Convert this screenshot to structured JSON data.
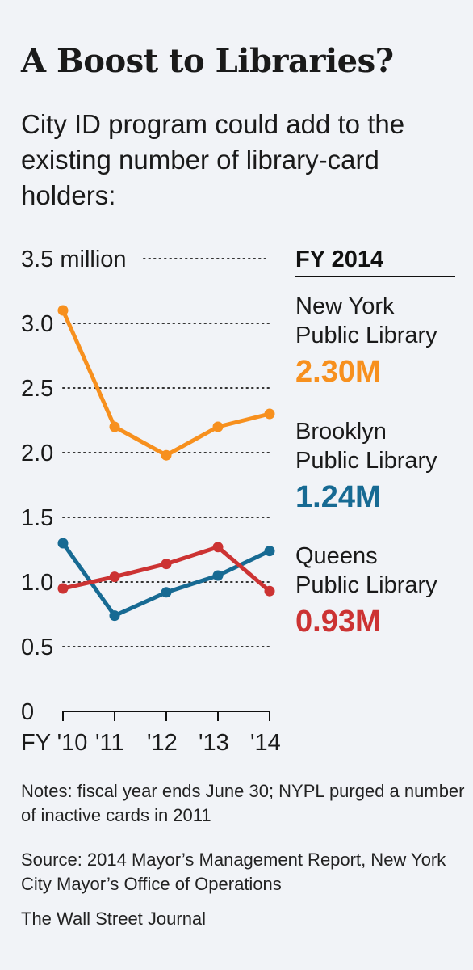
{
  "chart_data": {
    "type": "line",
    "title": "A Boost to Libraries?",
    "subtitle": "City ID program could add to the existing number of library-card holders:",
    "categories": [
      "FY '10",
      "'11",
      "'12",
      "'13",
      "'14"
    ],
    "y_ticks": [
      "3.5 million",
      "3.0",
      "2.5",
      "2.0",
      "1.5",
      "1.0",
      "0.5",
      "0"
    ],
    "ylim": [
      0,
      3.5
    ],
    "y_unit": "million",
    "grid": "dotted horizontal",
    "legend_header": "FY 2014",
    "series": [
      {
        "name": "New York Public Library",
        "name_lines": [
          "New York",
          "Public Library"
        ],
        "values": [
          3.1,
          2.2,
          1.98,
          2.2,
          2.3
        ],
        "label": "2.30M",
        "color": "#f7901e"
      },
      {
        "name": "Brooklyn Public Library",
        "name_lines": [
          "Brooklyn",
          "Public Library"
        ],
        "values": [
          1.3,
          0.74,
          0.92,
          1.05,
          1.24
        ],
        "label": "1.24M",
        "color": "#176a93"
      },
      {
        "name": "Queens Public Library",
        "name_lines": [
          "Queens",
          "Public Library"
        ],
        "values": [
          0.95,
          1.04,
          1.14,
          1.27,
          0.93
        ],
        "label": "0.93M",
        "color": "#cc3333"
      }
    ]
  },
  "notes": "Notes: fiscal year ends June 30; NYPL purged a number of inactive cards in 2011",
  "source": "Source: 2014 Mayor’s Management Report, New York City Mayor’s Office of Operations",
  "credit": "The Wall Street Journal"
}
